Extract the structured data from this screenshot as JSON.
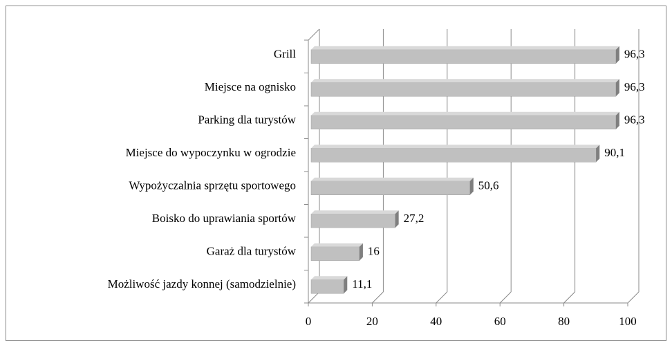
{
  "chart_data": {
    "type": "bar",
    "orientation": "horizontal",
    "categories": [
      "Grill",
      "Miejsce na ognisko",
      "Parking dla turystów",
      "Miejsce do wypoczynku w ogrodzie",
      "Wypożyczalnia sprzętu sportowego",
      "Boisko do uprawiania sportów",
      "Garaż dla turystów",
      "Możliwość jazdy konnej (samodzielnie)"
    ],
    "values": [
      96.3,
      96.3,
      96.3,
      90.1,
      50.6,
      27.2,
      16,
      11.1
    ],
    "value_labels": [
      "96,3",
      "96,3",
      "96,3",
      "90,1",
      "50,6",
      "27,2",
      "16",
      "11,1"
    ],
    "color": "#c0c0c0",
    "xlim": [
      0,
      100
    ],
    "xticks": [
      0,
      20,
      40,
      60,
      80,
      100
    ],
    "grid": true
  }
}
